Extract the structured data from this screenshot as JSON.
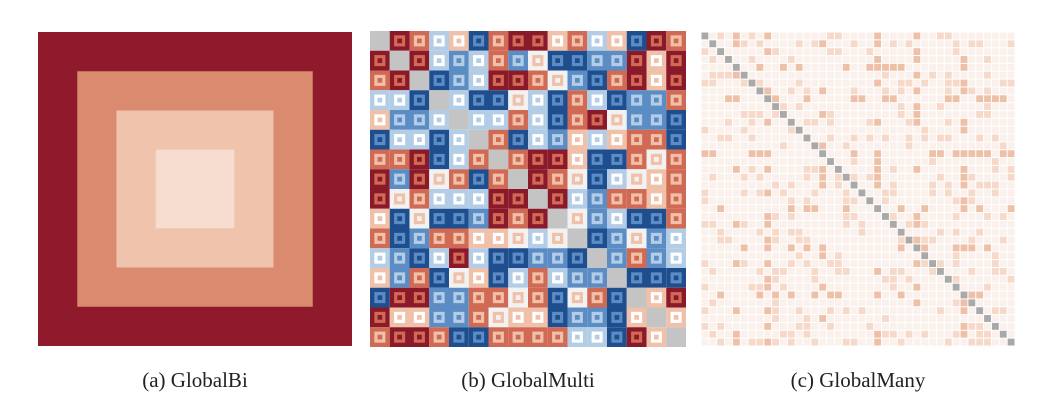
{
  "chart_data": [
    {
      "type": "heatmap",
      "caption": "(a) GlobalBi",
      "pattern": "nested-squares",
      "levels": 4,
      "colors": [
        "#8f1a2b",
        "#d98a6f",
        "#f0c3ad",
        "#f7ddcf"
      ]
    },
    {
      "type": "heatmap",
      "caption": "(b) GlobalMulti",
      "pattern": "block-mosaic",
      "cells_per_side": 16,
      "colors": {
        "strong_negative": "#1f4e8f",
        "negative": "#5b8cc4",
        "weak_negative": "#b3cde6",
        "neutral": "#f2f2f2",
        "weak_positive": "#f0c0a8",
        "positive": "#d06a55",
        "strong_positive": "#8a1a2a",
        "diagonal": "#c4c4c4"
      }
    },
    {
      "type": "heatmap",
      "caption": "(c) GlobalMany",
      "pattern": "sparse-light",
      "cells_per_side": 40,
      "colors": {
        "background": "#fbf1ec",
        "light": "#f6d9c9",
        "medium": "#efc0a8",
        "diagonal": "#a9a9a9",
        "grid": "#ffffff"
      }
    }
  ]
}
